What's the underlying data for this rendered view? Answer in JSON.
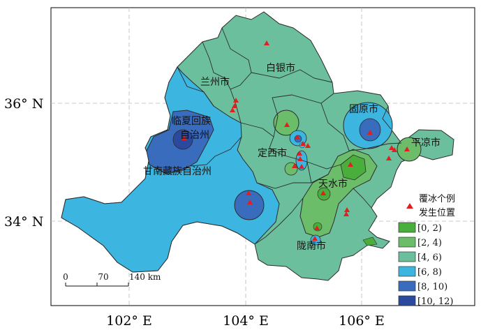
{
  "axes": {
    "y_ticks": [
      "36° N",
      "34° N"
    ],
    "x_ticks": [
      "102° E",
      "104° E",
      "106° E"
    ]
  },
  "cities": [
    "白银市",
    "兰州市",
    "临夏回族",
    "自治州",
    "定西市",
    "固原市",
    "平凉市",
    "甘南藏族自治州",
    "天水市",
    "陇南市"
  ],
  "legend": {
    "marker_label_line1": "覆冰个例",
    "marker_label_line2": "发生位置",
    "classes": [
      {
        "label": "[0, 2)",
        "color": "#4aae3c"
      },
      {
        "label": "[2, 4)",
        "color": "#6cbd6a"
      },
      {
        "label": "[4, 6)",
        "color": "#6bbf9c"
      },
      {
        "label": "[6, 8)",
        "color": "#3cb6e0"
      },
      {
        "label": "[8, 10)",
        "color": "#3a6cbd"
      },
      {
        "label": "[10, 12)",
        "color": "#2b4a9e"
      }
    ]
  },
  "scale_bar": {
    "labels": [
      "0",
      "70",
      "140 km"
    ]
  },
  "marker_color": "#e02020"
}
